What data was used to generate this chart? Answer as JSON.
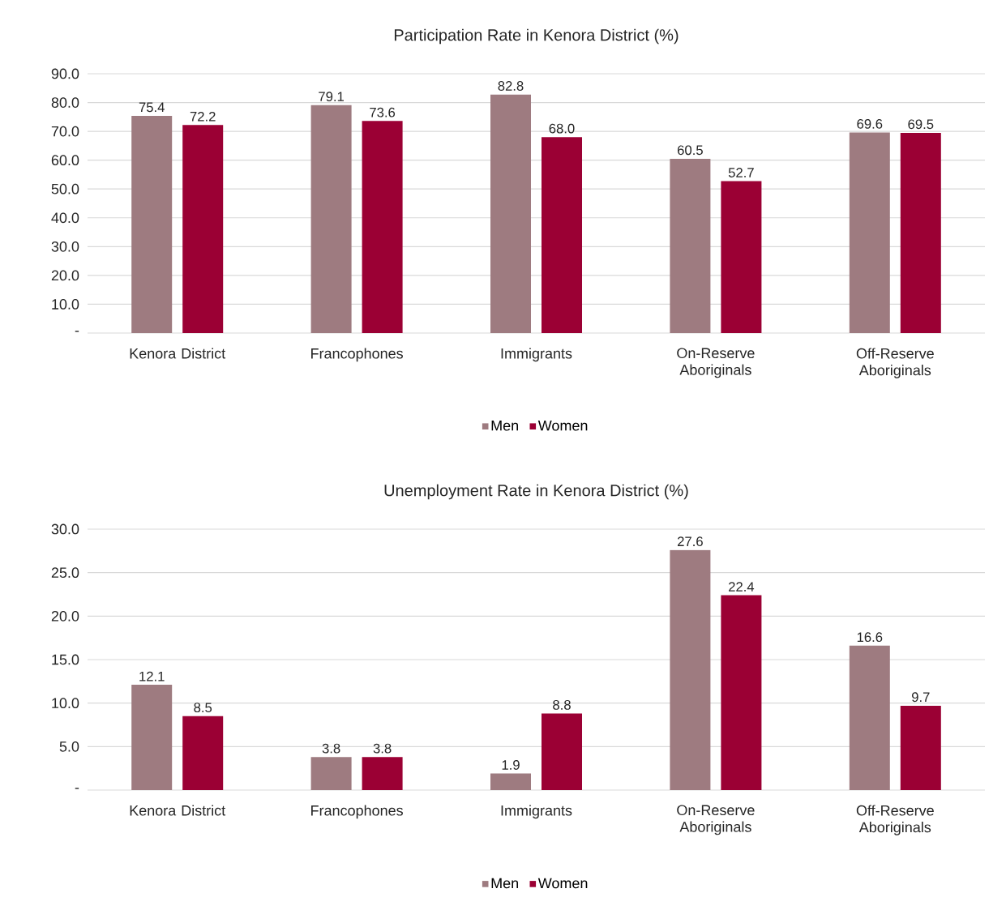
{
  "chart_data": [
    {
      "type": "bar",
      "title": "Participation Rate in Kenora District (%)",
      "categories": [
        "Kenora District",
        "Francophones",
        "Immigrants",
        "On-Reserve Aboriginals",
        "Off-Reserve Aboriginals"
      ],
      "series": [
        {
          "name": "Men",
          "color": "#9e7b80",
          "values": [
            75.4,
            79.1,
            82.8,
            60.5,
            69.6
          ],
          "value_labels": [
            "75.4",
            "79.1",
            "82.8",
            "60.5",
            "69.6"
          ]
        },
        {
          "name": "Women",
          "color": "#9b0034",
          "values": [
            72.2,
            73.6,
            68.0,
            52.7,
            69.5
          ],
          "value_labels": [
            "72.2",
            "73.6",
            "68.0",
            "52.7",
            "69.5"
          ]
        }
      ],
      "ylim": [
        0,
        90
      ],
      "yticks": [
        {
          "value": 0,
          "label": "-"
        },
        {
          "value": 10,
          "label": "10.0"
        },
        {
          "value": 20,
          "label": "20.0"
        },
        {
          "value": 30,
          "label": "30.0"
        },
        {
          "value": 40,
          "label": "40.0"
        },
        {
          "value": 50,
          "label": "50.0"
        },
        {
          "value": 60,
          "label": "60.0"
        },
        {
          "value": 70,
          "label": "70.0"
        },
        {
          "value": 80,
          "label": "80.0"
        },
        {
          "value": 90,
          "label": "90.0"
        }
      ],
      "grid": "y",
      "legend": "bottom"
    },
    {
      "type": "bar",
      "title": "Unemployment Rate in Kenora District (%)",
      "categories": [
        "Kenora District",
        "Francophones",
        "Immigrants",
        "On-Reserve Aboriginals",
        "Off-Reserve Aboriginals"
      ],
      "series": [
        {
          "name": "Men",
          "color": "#9e7b80",
          "values": [
            12.1,
            3.8,
            1.9,
            27.6,
            16.6
          ],
          "value_labels": [
            "12.1",
            "3.8",
            "1.9",
            "27.6",
            "16.6"
          ]
        },
        {
          "name": "Women",
          "color": "#9b0034",
          "values": [
            8.5,
            3.8,
            8.8,
            22.4,
            9.7
          ],
          "value_labels": [
            "8.5",
            "3.8",
            "8.8",
            "22.4",
            "9.7"
          ]
        }
      ],
      "ylim": [
        0,
        30
      ],
      "yticks": [
        {
          "value": 0,
          "label": "-"
        },
        {
          "value": 5,
          "label": "5.0"
        },
        {
          "value": 10,
          "label": "10.0"
        },
        {
          "value": 15,
          "label": "15.0"
        },
        {
          "value": 20,
          "label": "20.0"
        },
        {
          "value": 25,
          "label": "25.0"
        },
        {
          "value": 30,
          "label": "30.0"
        }
      ],
      "grid": "y",
      "legend": "bottom"
    }
  ]
}
